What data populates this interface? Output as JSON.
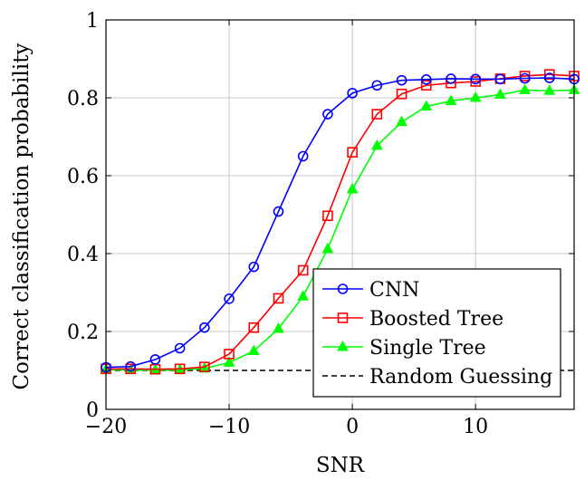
{
  "chart_data": {
    "type": "line",
    "title": "",
    "xlabel": "SNR",
    "ylabel": "Correct classification probability",
    "xlim": [
      -20,
      18
    ],
    "ylim": [
      0,
      1
    ],
    "grid": true,
    "legend_position": "bottom-right",
    "x_ticks": [
      -20,
      -10,
      0,
      10
    ],
    "x_tick_labels": [
      "−20",
      "−10",
      "0",
      "10"
    ],
    "y_ticks": [
      0,
      0.2,
      0.4,
      0.6,
      0.8,
      1
    ],
    "y_tick_labels": [
      "0",
      "0.2",
      "0.4",
      "0.6",
      "0.8",
      "1"
    ],
    "x": [
      -20,
      -18,
      -16,
      -14,
      -12,
      -10,
      -8,
      -6,
      -4,
      -2,
      0,
      2,
      4,
      6,
      8,
      10,
      12,
      14,
      16,
      18
    ],
    "series": [
      {
        "name": "CNN",
        "color": "#0000ff",
        "marker": "circle",
        "values": [
          0.108,
          0.11,
          0.128,
          0.157,
          0.21,
          0.284,
          0.366,
          0.508,
          0.65,
          0.758,
          0.812,
          0.832,
          0.845,
          0.847,
          0.849,
          0.848,
          0.848,
          0.85,
          0.851,
          0.848
        ]
      },
      {
        "name": "Boosted Tree",
        "color": "#ff0000",
        "marker": "square",
        "values": [
          0.104,
          0.104,
          0.103,
          0.104,
          0.109,
          0.142,
          0.21,
          0.285,
          0.357,
          0.497,
          0.66,
          0.758,
          0.81,
          0.832,
          0.838,
          0.842,
          0.849,
          0.856,
          0.86,
          0.856
        ]
      },
      {
        "name": "Single Tree",
        "color": "#00ff00",
        "marker": "triangle",
        "values": [
          0.102,
          0.101,
          0.101,
          0.101,
          0.105,
          0.12,
          0.15,
          0.207,
          0.29,
          0.412,
          0.565,
          0.677,
          0.738,
          0.778,
          0.792,
          0.8,
          0.808,
          0.82,
          0.818,
          0.82
        ]
      },
      {
        "name": "Random Guessing",
        "color": "#000000",
        "marker": "none",
        "dashed": true,
        "values": [
          0.1,
          0.1,
          0.1,
          0.1,
          0.1,
          0.1,
          0.1,
          0.1,
          0.1,
          0.1,
          0.1,
          0.1,
          0.1,
          0.1,
          0.1,
          0.1,
          0.1,
          0.1,
          0.1,
          0.1
        ]
      }
    ]
  }
}
